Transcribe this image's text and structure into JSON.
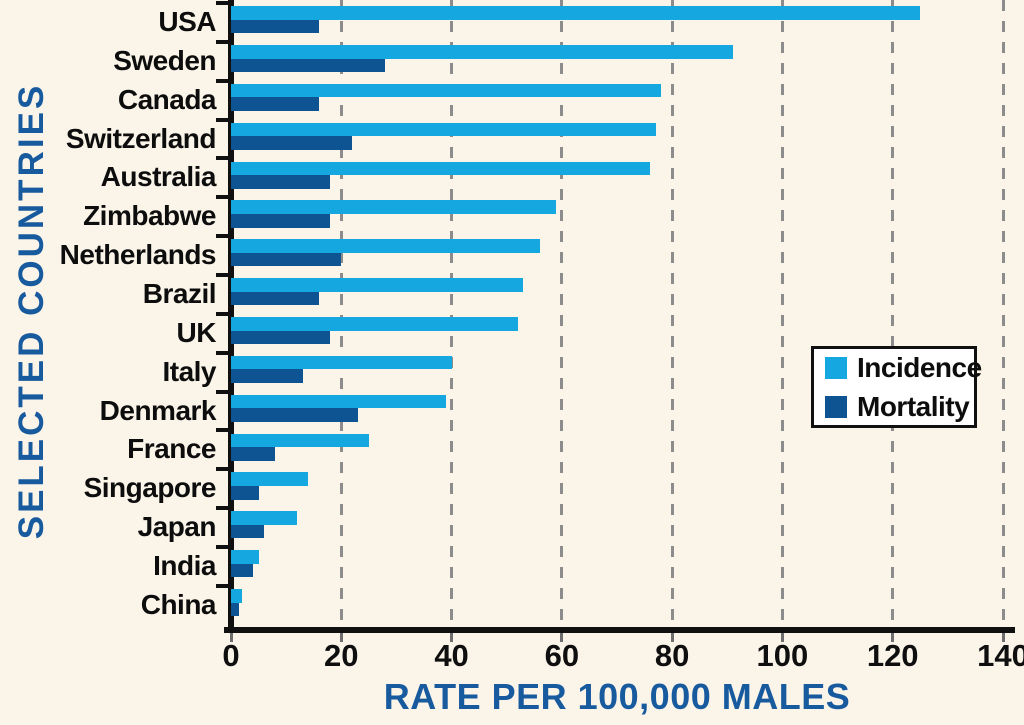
{
  "figure": {
    "background_color": "#faf4e9",
    "axis_color": "#101010",
    "gridline_color": "#8c8c8c",
    "title_color": "#185a9e"
  },
  "chart_data": {
    "type": "bar",
    "orientation": "horizontal",
    "title": "",
    "xlabel": "RATE PER 100,000 MALES",
    "ylabel": "SELECTED COUNTRIES",
    "xlim": [
      0,
      140
    ],
    "xticks": [
      0,
      20,
      40,
      60,
      80,
      100,
      120,
      140
    ],
    "grid": "dashed vertical gridlines every 20 units",
    "legend_position": "middle-right",
    "legend_border": "solid black on white",
    "categories": [
      "USA",
      "Sweden",
      "Canada",
      "Switzerland",
      "Australia",
      "Zimbabwe",
      "Netherlands",
      "Brazil",
      "UK",
      "Italy",
      "Denmark",
      "France",
      "Singapore",
      "Japan",
      "India",
      "China"
    ],
    "series": [
      {
        "name": "Incidence",
        "color": "#14a7e0",
        "values": [
          125,
          91,
          78,
          77,
          76,
          59,
          56,
          53,
          52,
          40,
          39,
          25,
          14,
          12,
          5,
          2
        ]
      },
      {
        "name": "Mortality",
        "color": "#0e5493",
        "values": [
          16,
          28,
          16,
          22,
          18,
          18,
          20,
          16,
          18,
          13,
          23,
          8,
          5,
          6,
          4,
          1.5
        ]
      }
    ]
  }
}
